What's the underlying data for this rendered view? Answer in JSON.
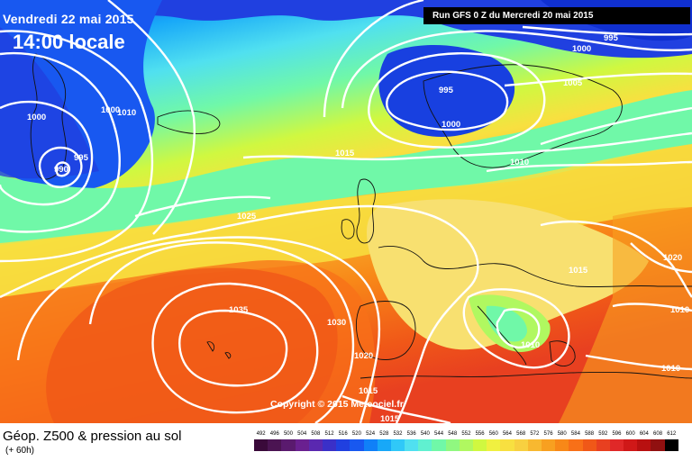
{
  "header": {
    "date": "Vendredi 22 mai 2015",
    "time": "14:00 locale",
    "run": "Run GFS 0 Z du Mercredi 20 mai 2015"
  },
  "copyright": "Copyright © 2015 Meteociel.fr",
  "footer": {
    "title": "Géop. Z500 & pression au sol",
    "subtitle": "(+ 60h)"
  },
  "isobar_labels": {
    "l1000_west": "1000",
    "l1000_west2": "1000",
    "l1010_west": "1010",
    "l995_west": "995",
    "l990_west": "990",
    "l995_north": "995",
    "l1000_north": "1000",
    "l1000_ne": "1000",
    "l995_ne": "995",
    "l1005_ne": "1005",
    "l1015_north": "1015",
    "l1010_east": "1010",
    "l1025_west": "1025",
    "l1035": "1035",
    "l1030": "1030",
    "l1020_sw": "1020",
    "l1015_sw": "1015",
    "l1015_bottom": "1015",
    "l1015_central": "1015",
    "l1010_italy": "1010",
    "l1020_east": "1020",
    "l1010_east2": "1010",
    "l1010_se": "1010"
  },
  "legend": {
    "values": [
      "492",
      "496",
      "500",
      "504",
      "508",
      "512",
      "516",
      "520",
      "524",
      "528",
      "532",
      "536",
      "540",
      "544",
      "548",
      "552",
      "556",
      "560",
      "564",
      "568",
      "572",
      "576",
      "580",
      "584",
      "588",
      "592",
      "596",
      "600",
      "604",
      "608",
      "612"
    ],
    "colors": [
      "#3a0a3a",
      "#4b1452",
      "#5a1a6e",
      "#6a2090",
      "#5a28b0",
      "#3a30c8",
      "#2040e0",
      "#1858f0",
      "#1080f8",
      "#18a8f8",
      "#30c8f8",
      "#50e0f0",
      "#60f0d0",
      "#70f8a8",
      "#90f880",
      "#b0f860",
      "#d0f840",
      "#f0f040",
      "#f8e040",
      "#f8d040",
      "#f8b830",
      "#f8a020",
      "#f88818",
      "#f87018",
      "#f05818",
      "#e84020",
      "#e02828",
      "#d01818",
      "#b81010",
      "#901010",
      "#000000"
    ]
  }
}
